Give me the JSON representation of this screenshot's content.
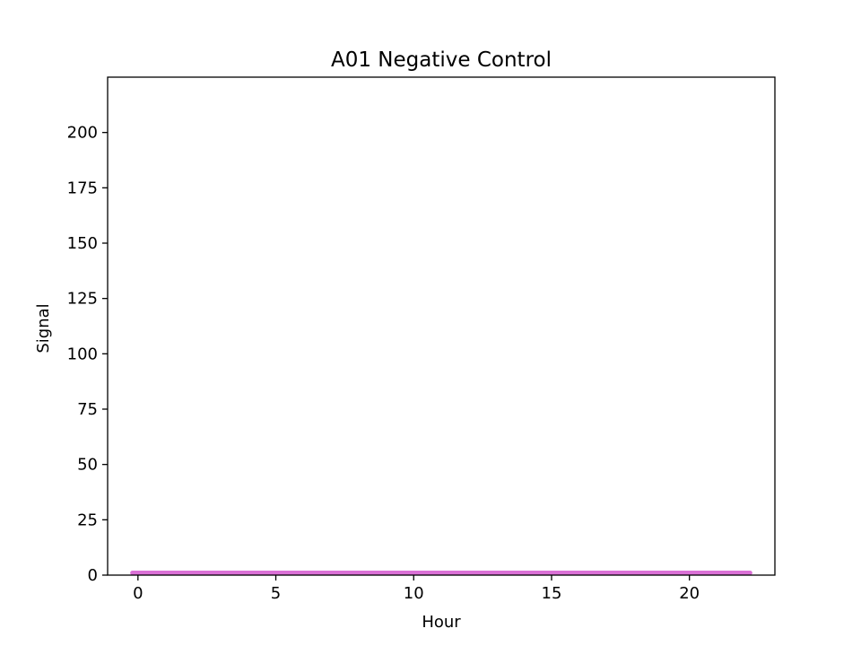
{
  "chart_data": {
    "type": "line",
    "title": "A01 Negative Control",
    "xlabel": "Hour",
    "ylabel": "Signal",
    "xlim": [
      -1.1,
      23.1
    ],
    "ylim": [
      0,
      225
    ],
    "xticks": [
      0,
      5,
      10,
      15,
      20
    ],
    "yticks": [
      0,
      25,
      50,
      75,
      100,
      125,
      150,
      175,
      200
    ],
    "grid": false,
    "series": [
      {
        "color": "#da70d6",
        "x": [
          -0.2,
          22.2
        ],
        "y": [
          1,
          1
        ]
      }
    ]
  }
}
